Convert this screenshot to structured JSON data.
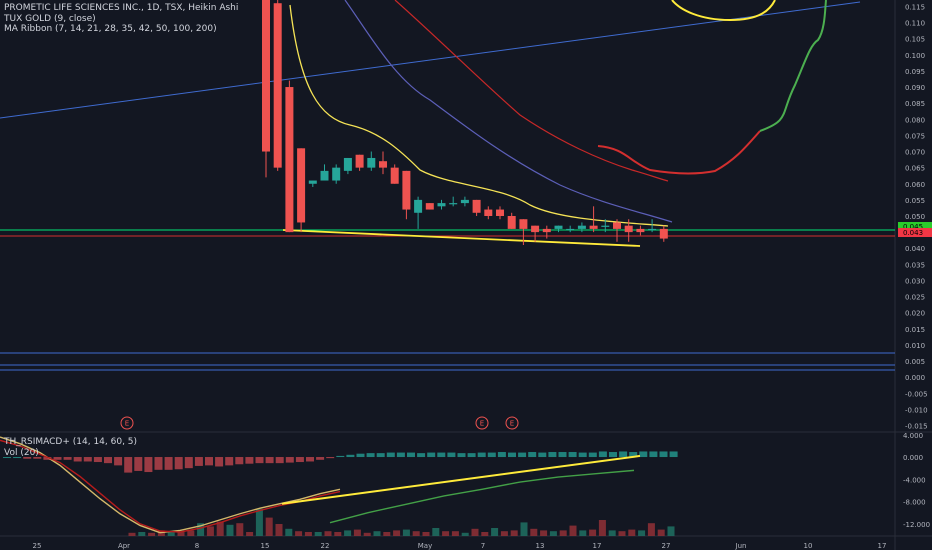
{
  "legend": {
    "symbol": "PROMETIC LIFE SCIENCES INC., 1D, TSX, Heikin Ashi",
    "indicator1": "TUX GOLD (9, close)",
    "indicator2": "MA Ribbon (7, 14, 21, 28, 35, 42, 50, 100, 200)",
    "macd": "TH_RSIMACD+ (14, 14, 60, 5)",
    "volume": "Vol (20)"
  },
  "colors": {
    "background": "#131722",
    "grid": "#1e2230",
    "up": "#26a69a",
    "down": "#ef5350",
    "yellow": "#ffeb3b",
    "ma_fast": "#f5e356",
    "ma_mid": "#5c5fb8",
    "ma_slow": "#c62828",
    "trend_blue": "#3f6bd0",
    "green_line": "#00e676",
    "red_line": "#d32f2f",
    "price_label_bg": "#2bcc2b",
    "price_label_bg2": "#f23645"
  },
  "chart_data": [
    {
      "type": "candlestick",
      "title": "PROMETIC LIFE SCIENCES INC., 1D, TSX, Heikin Ashi",
      "x_ticks": [
        "25",
        "Apr",
        "8",
        "15",
        "22",
        "May",
        "7",
        "13",
        "17",
        "27",
        "Jun",
        "10",
        "17"
      ],
      "y_ticks": [
        "0.115",
        "0.110",
        "0.105",
        "0.100",
        "0.095",
        "0.090",
        "0.085",
        "0.080",
        "0.075",
        "0.070",
        "0.065",
        "0.060",
        "0.055",
        "0.050",
        "0.045",
        "0.040",
        "0.035",
        "0.030",
        "0.025",
        "0.020",
        "0.015",
        "0.010",
        "0.005",
        "0.000",
        "-0.005",
        "-0.010",
        "-0.015"
      ],
      "ylim": [
        -0.017,
        0.117
      ],
      "price_labels": [
        "0.045",
        "0.043"
      ],
      "event_markers": [
        "E",
        "E",
        "E"
      ],
      "candles": [
        {
          "o": 0.12,
          "h": 0.12,
          "l": 0.062,
          "c": 0.07
        },
        {
          "o": 0.116,
          "h": 0.118,
          "l": 0.064,
          "c": 0.065
        },
        {
          "o": 0.09,
          "h": 0.092,
          "l": 0.045,
          "c": 0.045
        },
        {
          "o": 0.071,
          "h": 0.071,
          "l": 0.045,
          "c": 0.048
        },
        {
          "o": 0.06,
          "h": 0.061,
          "l": 0.059,
          "c": 0.061
        },
        {
          "o": 0.061,
          "h": 0.066,
          "l": 0.061,
          "c": 0.064
        },
        {
          "o": 0.061,
          "h": 0.066,
          "l": 0.06,
          "c": 0.065
        },
        {
          "o": 0.064,
          "h": 0.068,
          "l": 0.063,
          "c": 0.068
        },
        {
          "o": 0.069,
          "h": 0.069,
          "l": 0.064,
          "c": 0.065
        },
        {
          "o": 0.065,
          "h": 0.07,
          "l": 0.064,
          "c": 0.068
        },
        {
          "o": 0.067,
          "h": 0.07,
          "l": 0.063,
          "c": 0.065
        },
        {
          "o": 0.065,
          "h": 0.066,
          "l": 0.06,
          "c": 0.06
        },
        {
          "o": 0.064,
          "h": 0.064,
          "l": 0.049,
          "c": 0.052
        },
        {
          "o": 0.051,
          "h": 0.056,
          "l": 0.046,
          "c": 0.055
        },
        {
          "o": 0.054,
          "h": 0.054,
          "l": 0.052,
          "c": 0.052
        },
        {
          "o": 0.053,
          "h": 0.055,
          "l": 0.052,
          "c": 0.054
        },
        {
          "o": 0.054,
          "h": 0.056,
          "l": 0.053,
          "c": 0.054
        },
        {
          "o": 0.054,
          "h": 0.056,
          "l": 0.053,
          "c": 0.055
        },
        {
          "o": 0.055,
          "h": 0.055,
          "l": 0.05,
          "c": 0.051
        },
        {
          "o": 0.052,
          "h": 0.053,
          "l": 0.049,
          "c": 0.05
        },
        {
          "o": 0.052,
          "h": 0.053,
          "l": 0.049,
          "c": 0.05
        },
        {
          "o": 0.05,
          "h": 0.051,
          "l": 0.046,
          "c": 0.046
        },
        {
          "o": 0.049,
          "h": 0.049,
          "l": 0.041,
          "c": 0.046
        },
        {
          "o": 0.047,
          "h": 0.047,
          "l": 0.042,
          "c": 0.045
        },
        {
          "o": 0.046,
          "h": 0.047,
          "l": 0.043,
          "c": 0.045
        },
        {
          "o": 0.046,
          "h": 0.047,
          "l": 0.045,
          "c": 0.047
        },
        {
          "o": 0.046,
          "h": 0.047,
          "l": 0.045,
          "c": 0.046
        },
        {
          "o": 0.046,
          "h": 0.048,
          "l": 0.045,
          "c": 0.047
        },
        {
          "o": 0.047,
          "h": 0.053,
          "l": 0.045,
          "c": 0.046
        },
        {
          "o": 0.047,
          "h": 0.049,
          "l": 0.045,
          "c": 0.047
        },
        {
          "o": 0.048,
          "h": 0.049,
          "l": 0.042,
          "c": 0.046
        },
        {
          "o": 0.047,
          "h": 0.049,
          "l": 0.042,
          "c": 0.045
        },
        {
          "o": 0.046,
          "h": 0.047,
          "l": 0.044,
          "c": 0.045
        },
        {
          "o": 0.046,
          "h": 0.049,
          "l": 0.045,
          "c": 0.046
        },
        {
          "o": 0.046,
          "h": 0.047,
          "l": 0.042,
          "c": 0.043
        }
      ]
    },
    {
      "type": "bar",
      "title": "TH_RSIMACD+ (14, 14, 60, 5)",
      "y_ticks": [
        "4.000",
        "0.000",
        "-4.000",
        "-8.000",
        "-12.000"
      ],
      "ylim": [
        -14.2,
        4.5
      ],
      "histogram": [
        0,
        0,
        -0.3,
        -0.3,
        -0.5,
        -0.5,
        -0.5,
        -0.8,
        -0.8,
        -0.9,
        -1.1,
        -1.5,
        -2.8,
        -2.5,
        -2.7,
        -2.3,
        -2.3,
        -2.2,
        -2.0,
        -1.6,
        -1.5,
        -1.7,
        -1.5,
        -1.3,
        -1.2,
        -1.1,
        -1.1,
        -1.1,
        -1.0,
        -0.9,
        -0.8,
        -0.5,
        -0.2,
        0.2,
        0.4,
        0.6,
        0.7,
        0.7,
        0.8,
        0.8,
        0.8,
        0.7,
        0.8,
        0.8,
        0.8,
        0.7,
        0.7,
        0.8,
        0.8,
        0.9,
        0.8,
        0.8,
        0.9,
        0.8,
        0.9,
        0.9,
        0.9,
        0.8,
        0.8,
        1.0,
        0.9,
        1.0,
        0.9,
        1.0,
        1.0,
        1.0,
        1.0
      ],
      "volume": [
        0.4,
        0.5,
        0.4,
        0.7,
        0.6,
        0.6,
        0.7,
        1.6,
        1.2,
        1.8,
        1.4,
        1.6,
        0.5,
        3.4,
        2.3,
        1.5,
        0.9,
        0.6,
        0.5,
        0.5,
        0.6,
        0.5,
        0.7,
        0.8,
        0.4,
        0.6,
        0.5,
        0.7,
        0.8,
        0.6,
        0.5,
        1.0,
        0.6,
        0.6,
        0.4,
        0.9,
        0.5,
        1.0,
        0.6,
        0.7,
        1.7,
        0.9,
        0.7,
        0.6,
        0.7,
        1.3,
        0.7,
        0.8,
        2.0,
        0.7,
        0.6,
        0.8,
        0.7,
        1.6,
        0.8,
        1.2
      ],
      "series": [
        {
          "values": [
            3.6,
            2.4,
            0.8,
            -1.5,
            -4.5,
            -7.5,
            -10.2,
            -12.3,
            -13.6,
            -13.2,
            -12.4,
            -11.3,
            -10.2,
            -9.2,
            -8.4,
            -7.6,
            -6.6,
            -5.8
          ]
        },
        {
          "values": [
            3.0,
            2.0,
            0.5,
            -1.0,
            -3.5,
            -6.5,
            -9.5,
            -12.0,
            -13.3,
            -13.5,
            -12.8,
            -11.8,
            -10.6,
            -9.6,
            -8.7,
            -8.0,
            -7.0,
            -6.2
          ]
        },
        {
          "values": [
            -11.8,
            -10.0,
            -8.5,
            -7.0,
            -5.8,
            -4.5,
            -3.6,
            -3.0,
            -2.4
          ]
        }
      ]
    }
  ]
}
